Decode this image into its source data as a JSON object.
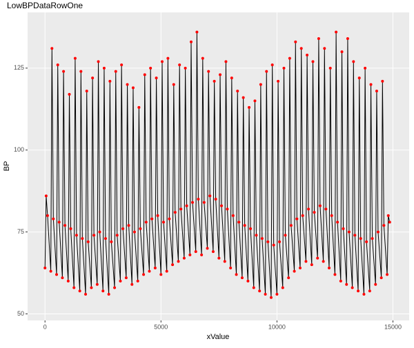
{
  "chart_data": {
    "type": "line",
    "title": "LowBPDataRowOne",
    "x_label": "xValue",
    "y_label": "BP",
    "xlim": [
      -750,
      15700
    ],
    "ylim": [
      48,
      142
    ],
    "xticks": [
      0,
      5000,
      10000,
      15000
    ],
    "yticks": [
      50,
      75,
      100,
      125
    ],
    "grid": true,
    "show_points": true,
    "point_color": "#ff0000",
    "series": [
      {
        "color": "#000000",
        "x": [
          0,
          50,
          110,
          250,
          300,
          360,
          500,
          550,
          610,
          750,
          800,
          860,
          1000,
          1050,
          1110,
          1250,
          1300,
          1360,
          1500,
          1550,
          1610,
          1750,
          1800,
          1860,
          2000,
          2050,
          2110,
          2250,
          2300,
          2360,
          2500,
          2550,
          2610,
          2750,
          2800,
          2860,
          3000,
          3050,
          3110,
          3250,
          3300,
          3360,
          3500,
          3550,
          3610,
          3750,
          3800,
          3860,
          4000,
          4050,
          4110,
          4250,
          4300,
          4360,
          4500,
          4550,
          4610,
          4750,
          4800,
          4860,
          5000,
          5050,
          5110,
          5250,
          5300,
          5360,
          5500,
          5550,
          5610,
          5750,
          5800,
          5860,
          6000,
          6050,
          6110,
          6250,
          6300,
          6360,
          6500,
          6550,
          6610,
          6750,
          6800,
          6860,
          7000,
          7050,
          7110,
          7250,
          7300,
          7360,
          7500,
          7550,
          7610,
          7750,
          7800,
          7860,
          8000,
          8050,
          8110,
          8250,
          8300,
          8360,
          8500,
          8550,
          8610,
          8750,
          8800,
          8860,
          9000,
          9050,
          9110,
          9250,
          9300,
          9360,
          9500,
          9550,
          9610,
          9750,
          9800,
          9860,
          10000,
          10050,
          10110,
          10250,
          10300,
          10360,
          10500,
          10550,
          10610,
          10750,
          10800,
          10860,
          11000,
          11050,
          11110,
          11250,
          11300,
          11360,
          11500,
          11550,
          11610,
          11750,
          11800,
          11860,
          12000,
          12050,
          12110,
          12250,
          12300,
          12360,
          12500,
          12550,
          12610,
          12750,
          12800,
          12860,
          13000,
          13050,
          13110,
          13250,
          13300,
          13360,
          13500,
          13550,
          13610,
          13750,
          13800,
          13860,
          14000,
          14050,
          14110,
          14250,
          14300,
          14360,
          14500,
          14550,
          14610,
          14750,
          14800,
          14860
        ],
        "values": [
          64,
          86,
          80,
          63,
          131,
          79,
          62,
          126,
          78,
          61,
          124,
          77,
          60,
          117,
          76,
          58,
          128,
          74,
          57,
          124,
          73,
          56,
          118,
          72,
          58,
          122,
          74,
          59,
          127,
          75,
          57,
          125,
          73,
          56,
          121,
          72,
          58,
          124,
          74,
          60,
          126,
          76,
          61,
          120,
          77,
          59,
          119,
          75,
          60,
          113,
          76,
          62,
          123,
          78,
          63,
          125,
          79,
          64,
          122,
          80,
          62,
          127,
          78,
          63,
          128,
          79,
          65,
          120,
          81,
          66,
          126,
          82,
          67,
          125,
          83,
          68,
          133,
          84,
          69,
          136,
          85,
          68,
          128,
          84,
          70,
          124,
          86,
          69,
          121,
          85,
          67,
          123,
          83,
          66,
          127,
          82,
          64,
          122,
          80,
          62,
          118,
          78,
          61,
          116,
          77,
          60,
          113,
          76,
          58,
          115,
          74,
          57,
          120,
          73,
          56,
          124,
          72,
          55,
          126,
          71,
          56,
          121,
          72,
          58,
          125,
          74,
          61,
          128,
          77,
          63,
          133,
          79,
          64,
          131,
          80,
          66,
          129,
          82,
          65,
          127,
          81,
          67,
          134,
          83,
          66,
          131,
          82,
          64,
          125,
          80,
          62,
          136,
          78,
          60,
          130,
          76,
          59,
          134,
          75,
          58,
          127,
          74,
          57,
          122,
          73,
          56,
          125,
          72,
          57,
          120,
          73,
          59,
          118,
          75,
          61,
          121,
          77,
          62,
          80,
          78
        ]
      }
    ]
  }
}
